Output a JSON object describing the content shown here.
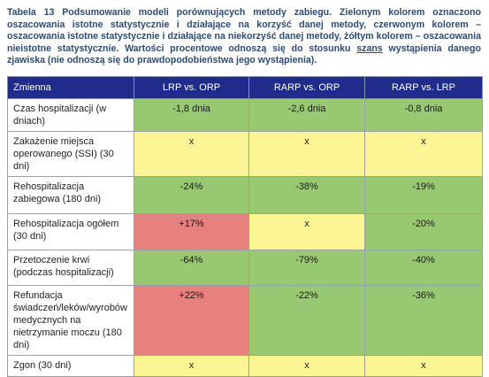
{
  "caption": {
    "part1": "Tabela 13 Podsumowanie modeli porównujących metody zabiegu. Zielonym kolorem oznaczono oszacowania istotne statystycznie i działające na korzyść danej metody, czerwonym kolorem – oszacowania istotne statystycznie i działające na niekorzyść danej metody, żółtym kolorem – oszacowania nieistotne statystycznie. Wartości procentowe odnoszą się do stosunku",
    "underlined": "szans",
    "part2": "wystąpienia danego zjawiska (nie odnoszą się do prawdopodobieństwa jego wystąpienia)."
  },
  "table": {
    "headers": [
      "Zmienna",
      "LRP vs. ORP",
      "RARP vs. ORP",
      "RARP vs. LRP"
    ],
    "rows": [
      {
        "label": "Czas hospitalizacji (w dniach)",
        "cells": [
          {
            "value": "-1,8 dnia",
            "status": "green"
          },
          {
            "value": "-2,6 dnia",
            "status": "green"
          },
          {
            "value": "-0,8 dnia",
            "status": "green"
          }
        ]
      },
      {
        "label": "Zakażenie miejsca operowanego (SSI) (30 dni)",
        "cells": [
          {
            "value": "x",
            "status": "yellow"
          },
          {
            "value": "x",
            "status": "yellow"
          },
          {
            "value": "x",
            "status": "yellow"
          }
        ]
      },
      {
        "label": "Rehospitalizacja zabiegowa (180 dni)",
        "cells": [
          {
            "value": "-24%",
            "status": "green"
          },
          {
            "value": "-38%",
            "status": "green"
          },
          {
            "value": "-19%",
            "status": "green"
          }
        ]
      },
      {
        "label": "Rehospitalizacja ogółem (30 dni)",
        "cells": [
          {
            "value": "+17%",
            "status": "red"
          },
          {
            "value": "x",
            "status": "yellow"
          },
          {
            "value": "-20%",
            "status": "green"
          }
        ]
      },
      {
        "label": "Przetoczenie krwi (podczas hospitalizacji)",
        "cells": [
          {
            "value": "-64%",
            "status": "green"
          },
          {
            "value": "-79%",
            "status": "green"
          },
          {
            "value": "-40%",
            "status": "green"
          }
        ]
      },
      {
        "label": "Refundacja świadczeń/leków/wyrobów medycznych na nietrzymanie moczu (180 dni)",
        "cells": [
          {
            "value": "+22%",
            "status": "red"
          },
          {
            "value": "-22%",
            "status": "green"
          },
          {
            "value": "-36%",
            "status": "green"
          }
        ]
      },
      {
        "label": "Zgon (30 dni)",
        "cells": [
          {
            "value": "x",
            "status": "yellow"
          },
          {
            "value": "x",
            "status": "yellow"
          },
          {
            "value": "x",
            "status": "yellow"
          }
        ]
      }
    ]
  }
}
